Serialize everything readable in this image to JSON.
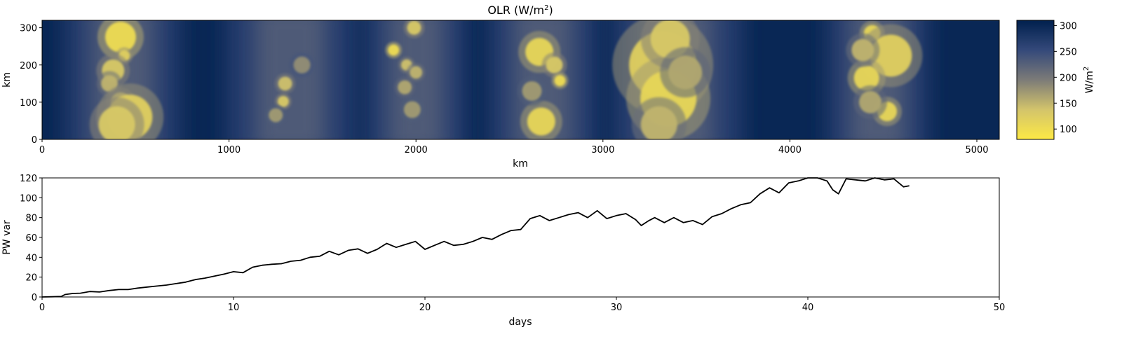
{
  "chart_data": [
    {
      "type": "heatmap",
      "title": "OLR (W/m",
      "title_sup": "2",
      "title_close": ")",
      "xlabel": "km",
      "ylabel": "km",
      "xlim": [
        0,
        5120
      ],
      "ylim": [
        0,
        320
      ],
      "xticks": [
        0,
        1000,
        2000,
        3000,
        4000,
        5000
      ],
      "yticks": [
        0,
        100,
        200,
        300
      ],
      "colormap": "cividis_r",
      "colorbar": {
        "label": "W/m",
        "label_sup": "2",
        "range": [
          80,
          310
        ],
        "ticks": [
          100,
          150,
          200,
          250,
          300
        ],
        "color_low": "#fde945",
        "color_mid": "#7c7b78",
        "color_high": "#00204d"
      },
      "convective_bands_km": [
        {
          "center": 430,
          "width": 340
        },
        {
          "center": 1330,
          "width": 380
        },
        {
          "center": 2000,
          "width": 300
        },
        {
          "center": 2680,
          "width": 320
        },
        {
          "center": 3400,
          "width": 380
        },
        {
          "center": 4470,
          "width": 300
        }
      ],
      "cells": [
        {
          "x": 420,
          "y": 275,
          "r": 22,
          "level": 100
        },
        {
          "x": 440,
          "y": 225,
          "r": 8,
          "level": 120
        },
        {
          "x": 380,
          "y": 185,
          "r": 16,
          "level": 130
        },
        {
          "x": 360,
          "y": 150,
          "r": 12,
          "level": 150
        },
        {
          "x": 420,
          "y": 100,
          "r": 14,
          "level": 140
        },
        {
          "x": 470,
          "y": 60,
          "r": 32,
          "level": 120
        },
        {
          "x": 400,
          "y": 40,
          "r": 26,
          "level": 130
        },
        {
          "x": 1300,
          "y": 150,
          "r": 10,
          "level": 140
        },
        {
          "x": 1290,
          "y": 102,
          "r": 8,
          "level": 130
        },
        {
          "x": 1250,
          "y": 65,
          "r": 10,
          "level": 170
        },
        {
          "x": 1390,
          "y": 200,
          "r": 12,
          "level": 180
        },
        {
          "x": 1880,
          "y": 240,
          "r": 8,
          "level": 100
        },
        {
          "x": 1990,
          "y": 300,
          "r": 10,
          "level": 130
        },
        {
          "x": 1950,
          "y": 200,
          "r": 8,
          "level": 140
        },
        {
          "x": 2000,
          "y": 180,
          "r": 9,
          "level": 150
        },
        {
          "x": 1940,
          "y": 140,
          "r": 10,
          "level": 160
        },
        {
          "x": 1980,
          "y": 80,
          "r": 12,
          "level": 170
        },
        {
          "x": 2660,
          "y": 235,
          "r": 20,
          "level": 110
        },
        {
          "x": 2740,
          "y": 200,
          "r": 12,
          "level": 130
        },
        {
          "x": 2770,
          "y": 158,
          "r": 8,
          "level": 100
        },
        {
          "x": 2670,
          "y": 48,
          "r": 20,
          "level": 110
        },
        {
          "x": 2620,
          "y": 130,
          "r": 14,
          "level": 170
        },
        {
          "x": 3320,
          "y": 200,
          "r": 48,
          "level": 120
        },
        {
          "x": 3350,
          "y": 110,
          "r": 40,
          "level": 110
        },
        {
          "x": 3360,
          "y": 270,
          "r": 28,
          "level": 130
        },
        {
          "x": 3440,
          "y": 180,
          "r": 24,
          "level": 160
        },
        {
          "x": 3300,
          "y": 40,
          "r": 26,
          "level": 150
        },
        {
          "x": 4440,
          "y": 285,
          "r": 12,
          "level": 110
        },
        {
          "x": 4540,
          "y": 225,
          "r": 30,
          "level": 120
        },
        {
          "x": 4410,
          "y": 165,
          "r": 18,
          "level": 110
        },
        {
          "x": 4520,
          "y": 75,
          "r": 14,
          "level": 110
        },
        {
          "x": 4430,
          "y": 100,
          "r": 16,
          "level": 160
        },
        {
          "x": 4390,
          "y": 240,
          "r": 16,
          "level": 150
        }
      ]
    },
    {
      "type": "line",
      "xlabel": "days",
      "ylabel": "PW var",
      "xlim": [
        0,
        50
      ],
      "ylim": [
        0,
        120
      ],
      "xticks": [
        0,
        10,
        20,
        30,
        40,
        50
      ],
      "yticks": [
        0,
        20,
        40,
        60,
        80,
        100,
        120
      ],
      "line_color": "#000000",
      "x": [
        0,
        0.5,
        1.0,
        1.2,
        1.6,
        2.0,
        2.5,
        3.0,
        3.5,
        4.0,
        4.5,
        5.0,
        5.5,
        6.0,
        6.5,
        7.0,
        7.5,
        8.0,
        8.5,
        9.0,
        9.5,
        10.0,
        10.5,
        11.0,
        11.5,
        12.0,
        12.5,
        13.0,
        13.5,
        14.0,
        14.5,
        15.0,
        15.5,
        16.0,
        16.5,
        17.0,
        17.5,
        18.0,
        18.5,
        19.0,
        19.5,
        20.0,
        20.5,
        21.0,
        21.5,
        22.0,
        22.5,
        23.0,
        23.5,
        24.0,
        24.5,
        25.0,
        25.5,
        26.0,
        26.5,
        27.0,
        27.5,
        28.0,
        28.5,
        29.0,
        29.5,
        30.0,
        30.5,
        31.0,
        31.3,
        31.7,
        32.0,
        32.5,
        33.0,
        33.5,
        34.0,
        34.5,
        35.0,
        35.5,
        36.0,
        36.5,
        37.0,
        37.5,
        38.0,
        38.5,
        39.0,
        39.5,
        40.0,
        40.5,
        41.0,
        41.3,
        41.6,
        42.0,
        42.5,
        43.0,
        43.5,
        44.0,
        44.5,
        45.0,
        45.3
      ],
      "y": [
        0,
        0.2,
        0.5,
        2.5,
        3.5,
        3.8,
        5.5,
        5.0,
        6.5,
        7.5,
        7.5,
        9.0,
        10.0,
        11.0,
        12.0,
        13.5,
        15.0,
        17.5,
        19.0,
        21.0,
        23.0,
        25.5,
        24.5,
        30.0,
        32.0,
        33.0,
        33.5,
        36.0,
        37.0,
        40.0,
        41.0,
        46.0,
        42.5,
        47.0,
        48.5,
        44.0,
        48.0,
        54.0,
        50.0,
        53.0,
        56.0,
        48.0,
        52.0,
        56.0,
        52.0,
        53.0,
        56.0,
        60.0,
        58.0,
        63.0,
        67.0,
        68.0,
        79.0,
        82.0,
        77.0,
        80.0,
        83.0,
        85.0,
        80.0,
        87.0,
        79.0,
        82.0,
        84.0,
        78.0,
        72.0,
        77.0,
        80.0,
        75.0,
        80.0,
        75.0,
        77.0,
        73.0,
        81.0,
        84.0,
        89.0,
        93.0,
        95.0,
        104.0,
        110.0,
        105.0,
        115.0,
        117.0,
        121.0,
        120.0,
        117.0,
        108.0,
        104.0,
        119.0,
        118.0,
        117.0,
        120.0,
        118.0,
        119.0,
        111.0,
        112.0
      ]
    }
  ]
}
